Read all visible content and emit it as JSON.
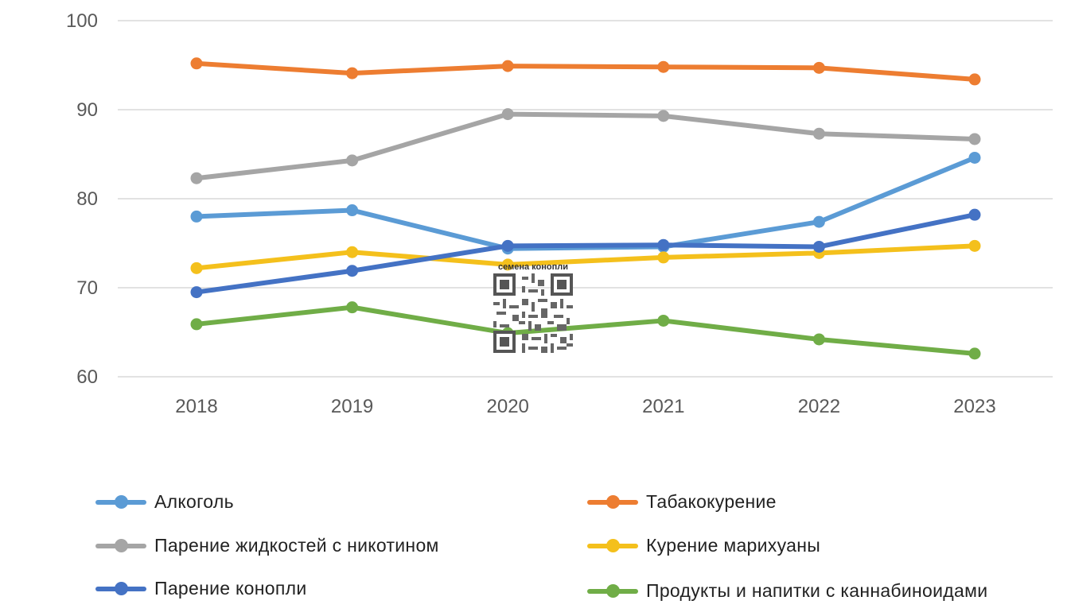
{
  "chart_data": {
    "type": "line",
    "title": "",
    "xlabel": "",
    "ylabel": "",
    "x": [
      "2018",
      "2019",
      "2020",
      "2021",
      "2022",
      "2023"
    ],
    "ylim": [
      60,
      100
    ],
    "yticks": [
      "60",
      "70",
      "80",
      "90",
      "100"
    ],
    "grid": "horizontal",
    "legend_position": "bottom",
    "series": [
      {
        "name": "Алкоголь",
        "color": "#5B9BD5",
        "values": [
          78.0,
          78.7,
          74.4,
          74.6,
          77.4,
          84.6
        ]
      },
      {
        "name": "Табакокурение",
        "color": "#ED7D31",
        "values": [
          95.2,
          94.1,
          94.9,
          94.8,
          94.7,
          93.4
        ]
      },
      {
        "name": "Парение жидкостей с никотином",
        "color": "#A5A5A5",
        "values": [
          82.3,
          84.3,
          89.5,
          89.3,
          87.3,
          86.7
        ]
      },
      {
        "name": "Курение марихуаны",
        "color": "#F4C01C",
        "values": [
          72.2,
          74.0,
          72.6,
          73.4,
          73.9,
          74.7
        ]
      },
      {
        "name": "Парение конопли",
        "color": "#4472C4",
        "values": [
          69.5,
          71.9,
          74.7,
          74.8,
          74.6,
          78.2
        ]
      },
      {
        "name": "Продукты и напитки с каннабиноидами",
        "color": "#70AD47",
        "values": [
          65.9,
          67.8,
          64.9,
          66.3,
          64.2,
          62.6
        ]
      }
    ]
  },
  "watermark": {
    "text": "семена конопли",
    "icon": "qr-code-icon"
  }
}
